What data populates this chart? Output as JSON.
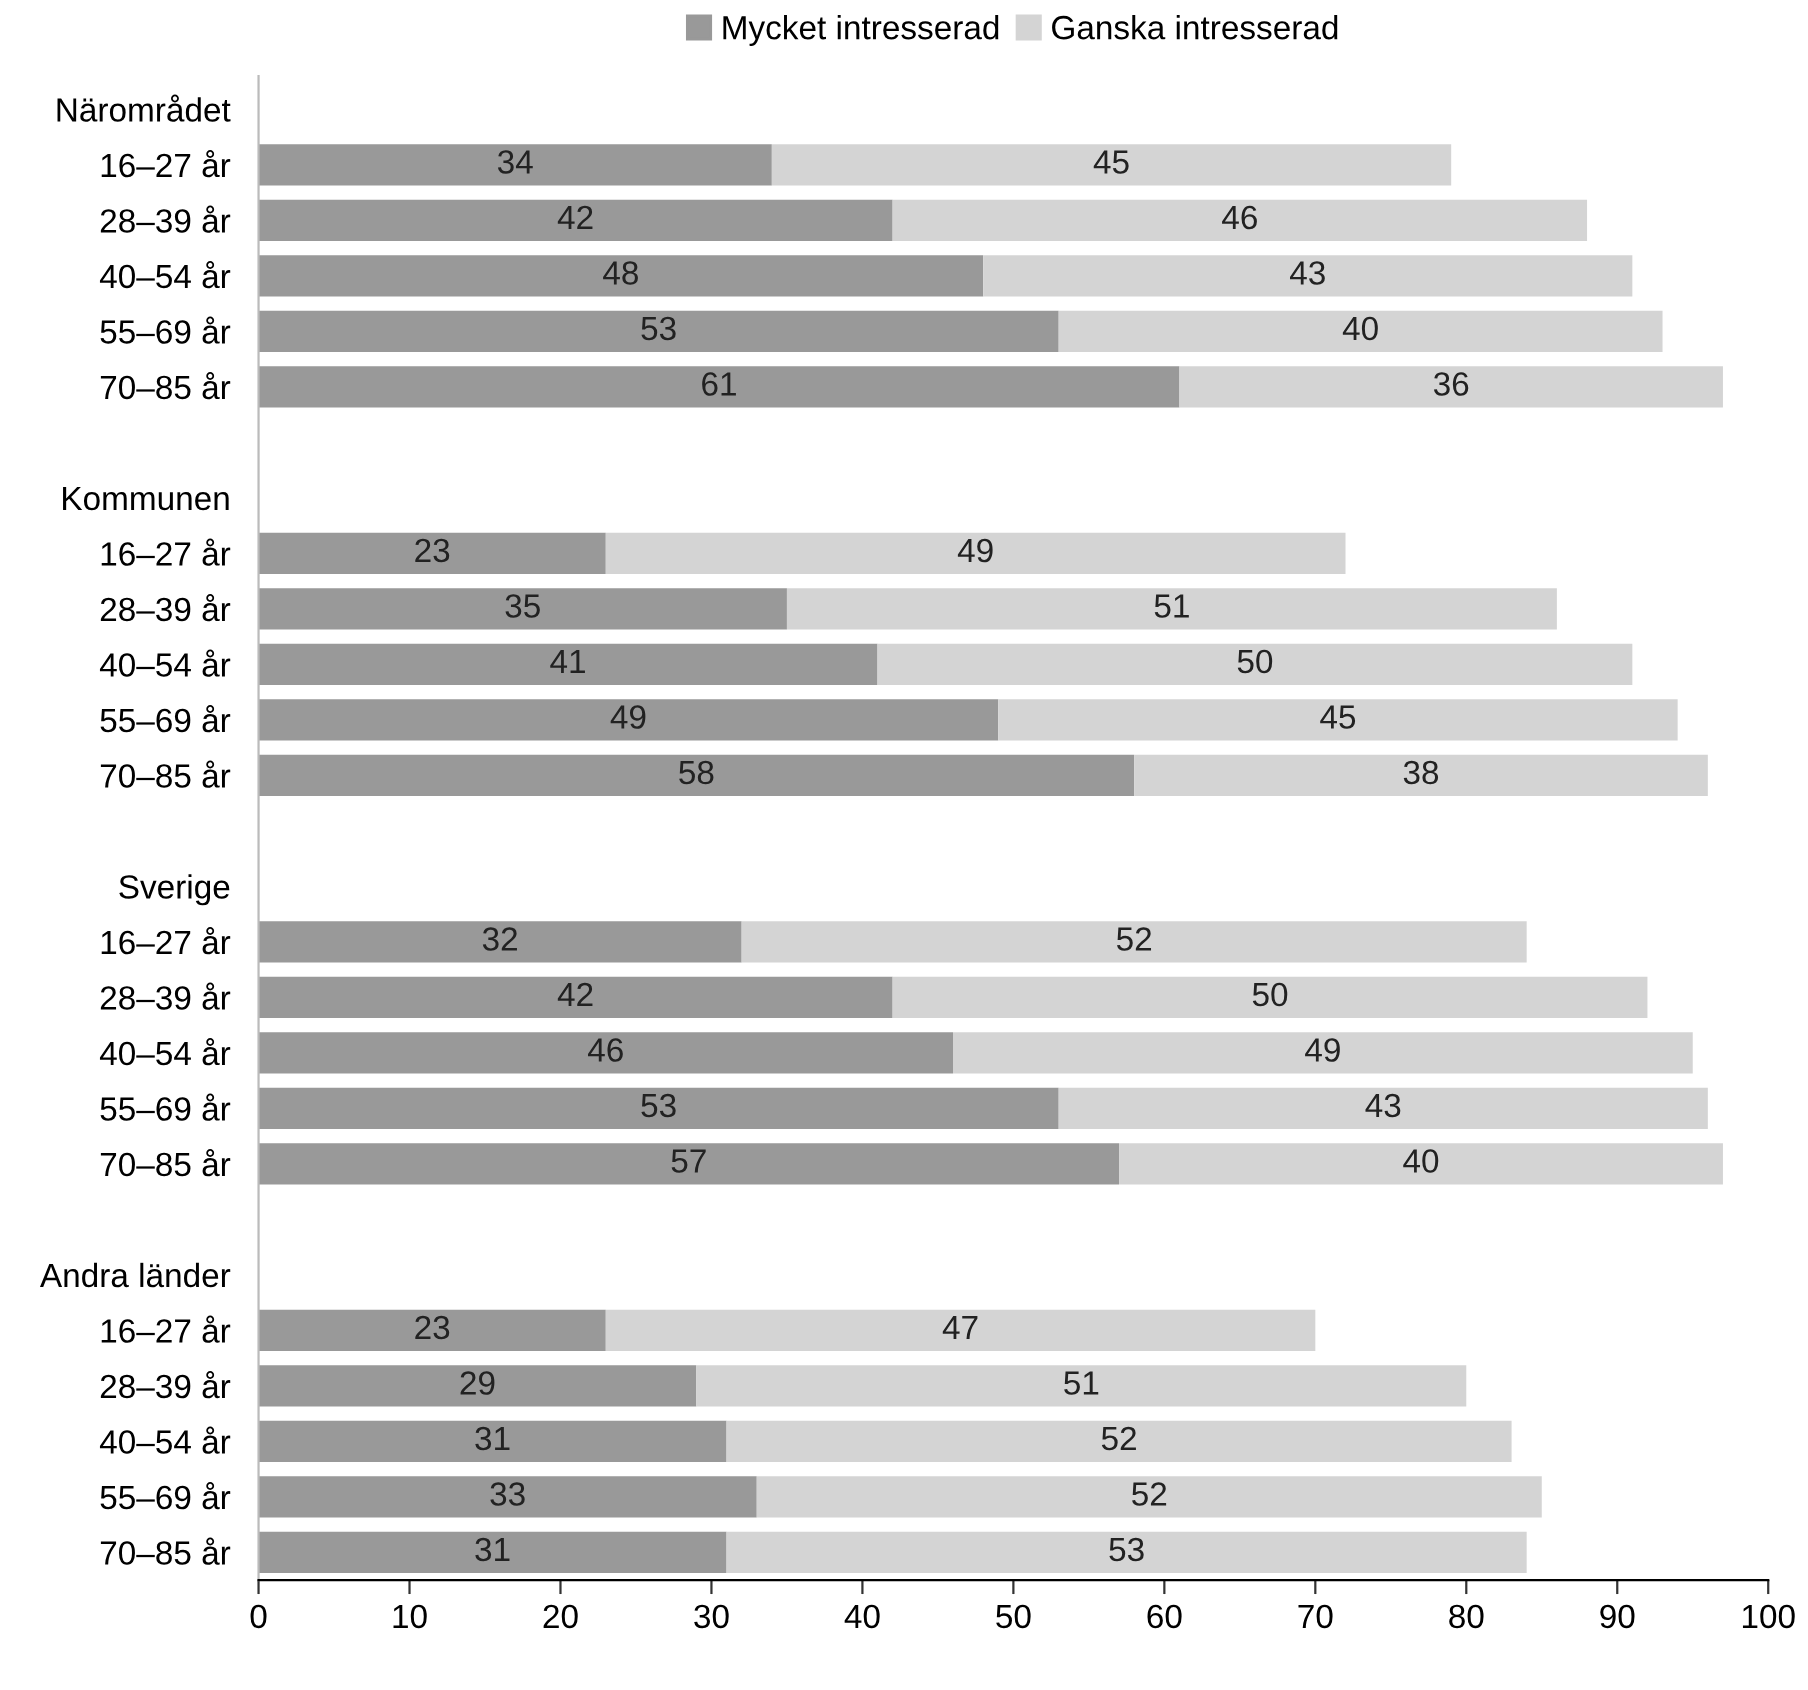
{
  "chart_data": {
    "type": "bar",
    "orientation": "horizontal",
    "stacked": true,
    "data_labels": true,
    "legend": "top",
    "grid": false,
    "categories": [
      "Närområdet",
      "16–27 år",
      "28–39 år",
      "40–54 år",
      "55–69 år",
      "70–85 år",
      null,
      "Kommunen",
      "16–27 år",
      "28–39 år",
      "40–54 år",
      "55–69 år",
      "70–85 år",
      null,
      "Sverige",
      "16–27 år",
      "28–39 år",
      "40–54 år",
      "55–69 år",
      "70–85 år",
      null,
      "Andra länder",
      "16–27 år",
      "28–39 år",
      "40–54 år",
      "55–69 år",
      "70–85 år"
    ],
    "series": [
      {
        "name": "Mycket intresserad",
        "color": "#999999",
        "values": [
          null,
          34,
          42,
          48,
          53,
          61,
          null,
          null,
          23,
          35,
          41,
          49,
          58,
          null,
          null,
          32,
          42,
          46,
          53,
          57,
          null,
          null,
          23,
          29,
          31,
          33,
          31
        ]
      },
      {
        "name": "Ganska intresserad",
        "color": "#d4d4d4",
        "values": [
          null,
          45,
          46,
          43,
          40,
          36,
          null,
          null,
          49,
          51,
          50,
          45,
          38,
          null,
          null,
          52,
          50,
          49,
          43,
          40,
          null,
          null,
          47,
          51,
          52,
          52,
          53
        ]
      }
    ],
    "xlim": [
      0,
      100
    ],
    "xticks": [
      0,
      10,
      20,
      30,
      40,
      50,
      60,
      70,
      80,
      90,
      100
    ]
  }
}
